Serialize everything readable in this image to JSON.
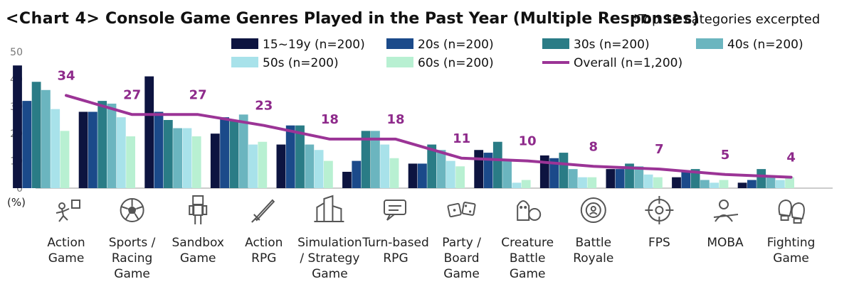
{
  "header": {
    "tag": "<Chart 4>",
    "title": "Console Game Genres Played in the Past Year (Multiple Responses)",
    "note": "*Top 12 categories excerpted"
  },
  "chart_data": {
    "type": "bar",
    "y_unit": "(%)",
    "ylim": [
      0,
      50
    ],
    "yticks": [
      0,
      10,
      20,
      30,
      40,
      50
    ],
    "grid": false,
    "legend_position": "top-right",
    "categories": [
      [
        "Action",
        "Game"
      ],
      [
        "Sports /",
        "Racing",
        "Game"
      ],
      [
        "Sandbox",
        "Game"
      ],
      [
        "Action",
        "RPG"
      ],
      [
        "Simulation",
        "/ Strategy",
        "Game"
      ],
      [
        "Turn-based",
        "RPG"
      ],
      [
        "Party /",
        "Board",
        "Game"
      ],
      [
        "Creature",
        "Battle",
        "Game"
      ],
      [
        "Battle",
        "Royale"
      ],
      [
        "FPS"
      ],
      [
        "MOBA"
      ],
      [
        "Fighting",
        "Game"
      ]
    ],
    "icons": [
      "action-game-icon",
      "soccer-ball-icon",
      "blocky-figure-icon",
      "sword-icon",
      "buildings-icon",
      "chat-window-icon",
      "dice-icon",
      "monsters-icon",
      "battle-royale-icon",
      "crosshair-icon",
      "moba-character-icon",
      "boxing-gloves-icon"
    ],
    "series": [
      {
        "name": "15~19y (n=200)",
        "color": "#0d1440",
        "values": [
          45,
          28,
          41,
          20,
          16,
          6,
          9,
          14,
          12,
          7,
          4,
          2
        ]
      },
      {
        "name": "20s (n=200)",
        "color": "#1b4a8a",
        "values": [
          32,
          28,
          28,
          26,
          23,
          10,
          9,
          13,
          11,
          7,
          6,
          3
        ]
      },
      {
        "name": "30s (n=200)",
        "color": "#2a7c86",
        "values": [
          39,
          32,
          25,
          25,
          23,
          21,
          16,
          17,
          13,
          9,
          7,
          7
        ]
      },
      {
        "name": "40s (n=200)",
        "color": "#6bb5bf",
        "values": [
          36,
          31,
          22,
          27,
          16,
          21,
          14,
          10,
          7,
          8,
          3,
          4
        ]
      },
      {
        "name": "50s (n=200)",
        "color": "#a8e2ea",
        "values": [
          29,
          26,
          22,
          16,
          14,
          16,
          10,
          2,
          4,
          5,
          2,
          3
        ]
      },
      {
        "name": "60s (n=200)",
        "color": "#b8f0d2",
        "values": [
          21,
          19,
          19,
          17,
          10,
          11,
          8,
          3,
          4,
          4,
          3,
          4
        ]
      }
    ],
    "overall": {
      "name": "Overall (n=1,200)",
      "color": "#9b3496",
      "values": [
        34,
        27,
        27,
        23,
        18,
        18,
        11,
        10,
        8,
        7,
        5,
        4
      ]
    }
  }
}
